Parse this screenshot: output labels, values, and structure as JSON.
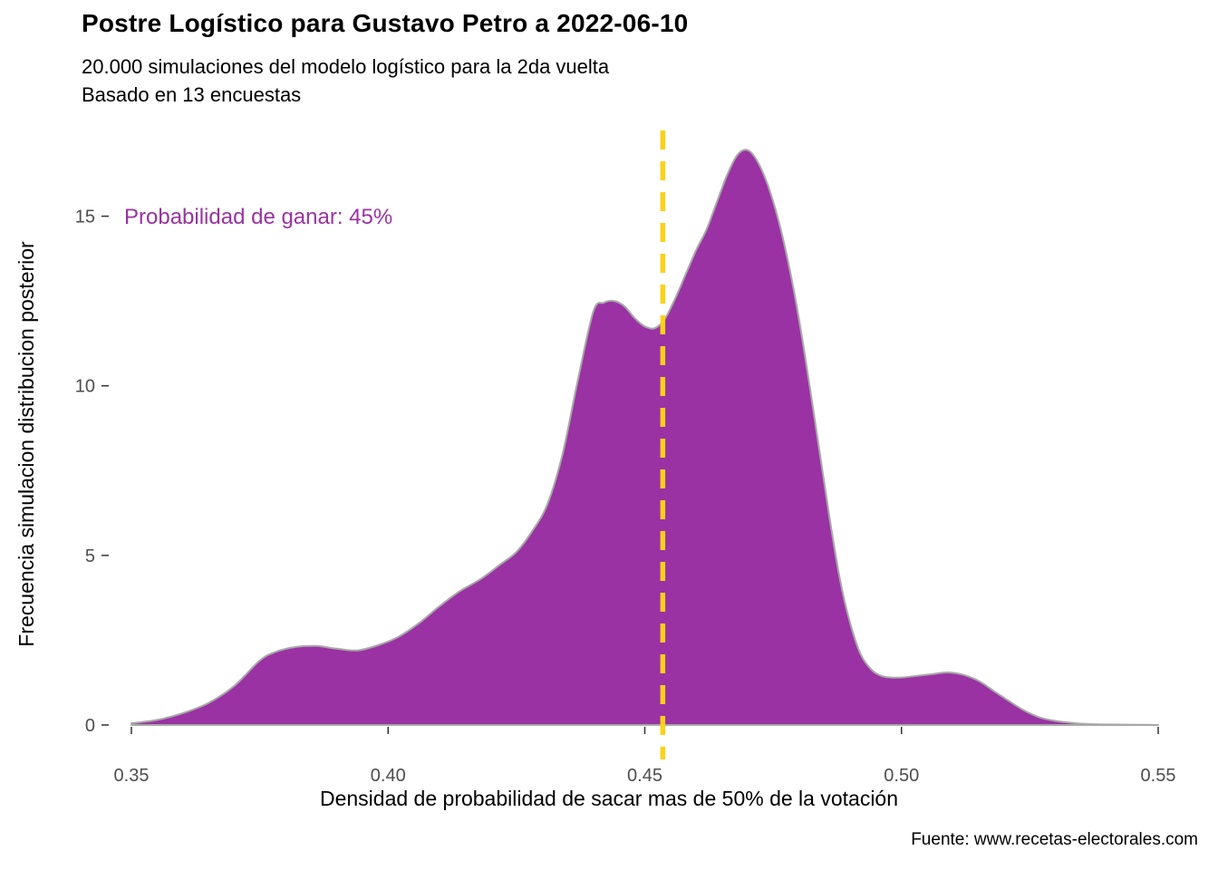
{
  "header": {
    "title": "Postre Logístico para Gustavo Petro a 2022-06-10",
    "subtitle_lines": [
      "20.000 simulaciones del modelo logístico para la 2da vuelta",
      "Basado en 13 encuestas"
    ]
  },
  "annotation": {
    "text": "Probabilidad de ganar: 45%",
    "color": "#9A32A3"
  },
  "footer": {
    "source": "Fuente: www.recetas-electorales.com"
  },
  "chart_data": {
    "type": "area",
    "title": "Postre Logístico para Gustavo Petro a 2022-06-10",
    "subtitle": "20.000 simulaciones del modelo logístico para la 2da vuelta — Basado en 13 encuestas",
    "xlabel": "Densidad de probabilidad de sacar mas de 50% de la votación",
    "ylabel": "Frecuencia simulacion distribucion posterior",
    "xlim": [
      0.35,
      0.55
    ],
    "ylim": [
      0,
      17.5
    ],
    "x_ticks": [
      0.35,
      0.4,
      0.45,
      0.5,
      0.55
    ],
    "x_tick_labels": [
      "0.35",
      "0.40",
      "0.45",
      "0.50",
      "0.55"
    ],
    "y_ticks": [
      0,
      5,
      10,
      15
    ],
    "y_tick_labels": [
      "0",
      "5",
      "10",
      "15"
    ],
    "grid": false,
    "legend": "none",
    "vline_x": 0.4535,
    "fill_color": "#9A32A3",
    "outline_color": "#A8A8A8",
    "vline_color": "#FCD116",
    "win_probability_percent": 45,
    "density": {
      "x": [
        0.35,
        0.355,
        0.36,
        0.365,
        0.37,
        0.375,
        0.378,
        0.382,
        0.386,
        0.39,
        0.394,
        0.398,
        0.402,
        0.406,
        0.41,
        0.414,
        0.418,
        0.422,
        0.425,
        0.428,
        0.431,
        0.434,
        0.437,
        0.44,
        0.442,
        0.444,
        0.446,
        0.448,
        0.45,
        0.452,
        0.454,
        0.456,
        0.458,
        0.46,
        0.462,
        0.464,
        0.466,
        0.468,
        0.47,
        0.472,
        0.474,
        0.476,
        0.478,
        0.48,
        0.482,
        0.484,
        0.486,
        0.488,
        0.49,
        0.492,
        0.494,
        0.496,
        0.498,
        0.5,
        0.503,
        0.506,
        0.509,
        0.512,
        0.515,
        0.518,
        0.521,
        0.524,
        0.527,
        0.53,
        0.534,
        0.538,
        0.544,
        0.55
      ],
      "y": [
        0.05,
        0.15,
        0.35,
        0.65,
        1.15,
        1.9,
        2.15,
        2.3,
        2.33,
        2.25,
        2.2,
        2.35,
        2.6,
        3.0,
        3.5,
        3.95,
        4.3,
        4.75,
        5.1,
        5.7,
        6.5,
        8.0,
        10.2,
        12.2,
        12.45,
        12.5,
        12.35,
        12.0,
        11.75,
        11.7,
        12.0,
        12.6,
        13.3,
        14.0,
        14.6,
        15.4,
        16.2,
        16.8,
        16.95,
        16.6,
        15.9,
        14.9,
        13.6,
        12.0,
        10.1,
        8.1,
        6.1,
        4.3,
        3.0,
        2.1,
        1.65,
        1.45,
        1.4,
        1.4,
        1.45,
        1.5,
        1.55,
        1.48,
        1.3,
        1.0,
        0.7,
        0.42,
        0.22,
        0.12,
        0.05,
        0.02,
        0.01,
        0.0
      ]
    }
  }
}
